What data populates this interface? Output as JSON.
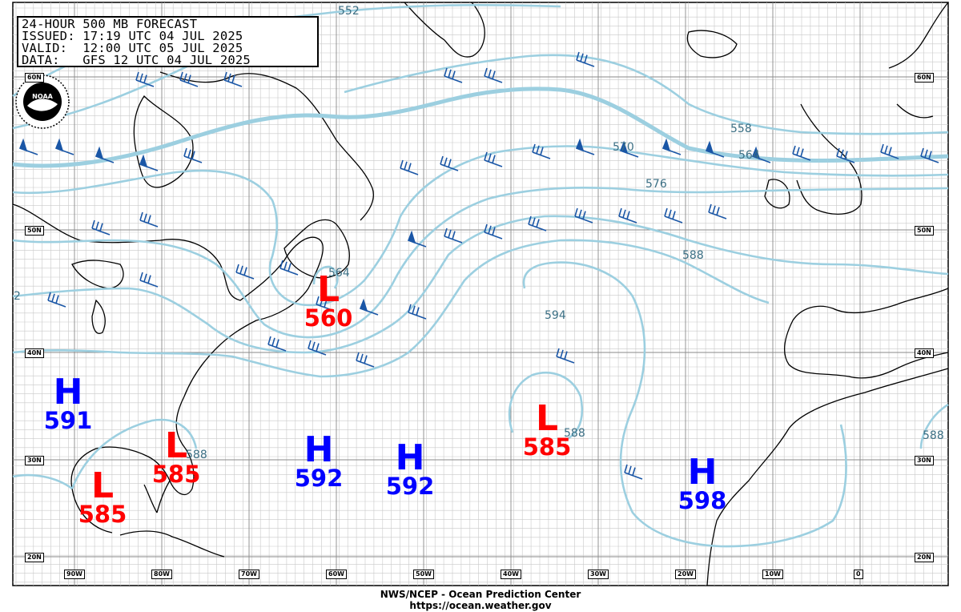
{
  "header": {
    "line1": "24-HOUR 500 MB FORECAST",
    "line2": "ISSUED: 17:19 UTC 04 JUL 2025",
    "line3": "VALID:  12:00 UTC 05 JUL 2025",
    "line4": "DATA:   GFS 12 UTC 04 JUL 2025"
  },
  "logo_text": "NOAA",
  "footer": {
    "agency": "NWS/NCEP - Ocean Prediction Center",
    "url": "https://ocean.weather.gov"
  },
  "latitude_labels": [
    "60N",
    "50N",
    "40N",
    "30N",
    "20N"
  ],
  "longitude_labels": [
    "90W",
    "80W",
    "70W",
    "60W",
    "50W",
    "40W",
    "30W",
    "20W",
    "10W",
    "0"
  ],
  "pressure_centers": [
    {
      "type": "L",
      "value": "560"
    },
    {
      "type": "H",
      "value": "591"
    },
    {
      "type": "L",
      "value": "585"
    },
    {
      "type": "L",
      "value": "585"
    },
    {
      "type": "H",
      "value": "592"
    },
    {
      "type": "H",
      "value": "592"
    },
    {
      "type": "L",
      "value": "585"
    },
    {
      "type": "H",
      "value": "598"
    }
  ],
  "contour_labels": [
    "552",
    "558",
    "564",
    "570",
    "576",
    "588",
    "594",
    "564",
    "588",
    "588",
    "588",
    "2"
  ],
  "colors": {
    "contour": "#9ccfe0",
    "contour_label": "#3b6f84",
    "wind_barb": "#1a56a6",
    "low": "#ff0000",
    "high": "#0000ff",
    "grid": "#bbbbbb",
    "coast": "#000000"
  }
}
